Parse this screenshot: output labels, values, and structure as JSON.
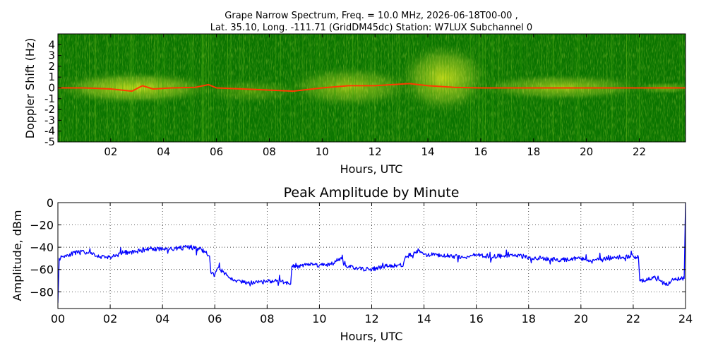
{
  "title_line1": "Grape Narrow Spectrum, Freq. = 10.0 MHz, 2026-06-18T00-00 ,",
  "title_line2": "Lat.  35.10, Long. -111.71 (GridDM45dc) Station: W7LUX Subchannel 0",
  "chart_data": [
    {
      "type": "heatmap",
      "title": "",
      "xlabel": "Hours, UTC",
      "ylabel": "Doppler Shift (Hz)",
      "xlim": [
        0,
        23.75
      ],
      "ylim": [
        -5,
        5
      ],
      "x_tick_labels": [
        "02",
        "04",
        "06",
        "08",
        "10",
        "12",
        "14",
        "16",
        "18",
        "20",
        "22"
      ],
      "x_tick_values": [
        2,
        4,
        6,
        8,
        10,
        12,
        14,
        16,
        18,
        20,
        22
      ],
      "y_tick_labels": [
        "4",
        "3",
        "2",
        "1",
        "0",
        "-1",
        "-2",
        "-3",
        "-4",
        "-5"
      ],
      "y_tick_values": [
        4,
        3,
        2,
        1,
        0,
        -1,
        -2,
        -3,
        -4,
        -5
      ],
      "colors": {
        "background": "#0a7400",
        "signal": "#f4f51e",
        "peak": "#ff3b00"
      },
      "peak_trace": [
        {
          "x": 0.0,
          "y": 0.0
        },
        {
          "x": 1.0,
          "y": 0.0
        },
        {
          "x": 2.0,
          "y": -0.1
        },
        {
          "x": 2.8,
          "y": -0.3
        },
        {
          "x": 3.2,
          "y": 0.2
        },
        {
          "x": 3.6,
          "y": -0.1
        },
        {
          "x": 4.3,
          "y": 0.0
        },
        {
          "x": 5.2,
          "y": 0.05
        },
        {
          "x": 5.7,
          "y": 0.3
        },
        {
          "x": 6.0,
          "y": 0.0
        },
        {
          "x": 7.0,
          "y": -0.1
        },
        {
          "x": 8.0,
          "y": -0.2
        },
        {
          "x": 8.9,
          "y": -0.3
        },
        {
          "x": 10.0,
          "y": 0.0
        },
        {
          "x": 11.0,
          "y": 0.2
        },
        {
          "x": 12.0,
          "y": 0.2
        },
        {
          "x": 13.3,
          "y": 0.4
        },
        {
          "x": 14.0,
          "y": 0.2
        },
        {
          "x": 15.0,
          "y": 0.05
        },
        {
          "x": 16.0,
          "y": 0.0
        },
        {
          "x": 17.0,
          "y": 0.0
        },
        {
          "x": 18.0,
          "y": 0.0
        },
        {
          "x": 20.0,
          "y": 0.0
        },
        {
          "x": 22.0,
          "y": 0.0
        },
        {
          "x": 23.75,
          "y": 0.0
        }
      ]
    },
    {
      "type": "line",
      "title": "Peak Amplitude by Minute",
      "xlabel": "Hours, UTC",
      "ylabel": "Amplitude, dBm",
      "xlim": [
        0,
        24
      ],
      "ylim": [
        -95,
        0
      ],
      "grid": true,
      "x_tick_labels": [
        "00",
        "02",
        "04",
        "06",
        "08",
        "10",
        "12",
        "14",
        "16",
        "18",
        "20",
        "22",
        "24"
      ],
      "x_tick_values": [
        0,
        2,
        4,
        6,
        8,
        10,
        12,
        14,
        16,
        18,
        20,
        22,
        24
      ],
      "y_tick_labels": [
        "0",
        "−20",
        "−40",
        "−60",
        "−80"
      ],
      "y_tick_values": [
        0,
        -20,
        -40,
        -60,
        -80
      ],
      "line_color": "#0000ff",
      "series": [
        {
          "x": [
            0.0,
            0.05,
            0.2,
            0.5,
            1.0,
            1.5,
            2.0,
            2.5,
            3.0,
            3.5,
            4.0,
            4.5,
            5.0,
            5.5,
            5.8,
            5.85,
            6.0,
            6.15,
            6.3,
            6.6,
            7.0,
            7.5,
            8.0,
            8.5,
            8.9,
            8.95,
            9.2,
            9.5,
            10.0,
            10.5,
            10.8,
            11.0,
            11.5,
            12.0,
            12.5,
            13.0,
            13.2,
            13.3,
            13.6,
            13.8,
            14.0,
            14.5,
            15.0,
            15.5,
            16.0,
            16.5,
            17.0,
            17.5,
            18.0,
            18.5,
            19.0,
            19.5,
            20.0,
            20.5,
            21.0,
            21.5,
            22.0,
            22.2,
            22.25,
            22.5,
            22.8,
            23.0,
            23.3,
            23.5,
            23.8,
            23.95,
            24.0
          ],
          "y": [
            -90,
            -50,
            -48,
            -46,
            -44,
            -48,
            -49,
            -45,
            -44,
            -41,
            -42,
            -41,
            -40,
            -42,
            -48,
            -63,
            -65,
            -58,
            -62,
            -68,
            -71,
            -72,
            -71,
            -70,
            -73,
            -57,
            -57,
            -55,
            -56,
            -55,
            -50,
            -57,
            -59,
            -60,
            -57,
            -56,
            -57,
            -48,
            -46,
            -43,
            -46,
            -47,
            -48,
            -49,
            -47,
            -48,
            -48,
            -47,
            -49,
            -50,
            -51,
            -51,
            -50,
            -52,
            -50,
            -49,
            -48,
            -49,
            -70,
            -70,
            -67,
            -70,
            -74,
            -68,
            -68,
            -68,
            0
          ]
        }
      ]
    }
  ]
}
